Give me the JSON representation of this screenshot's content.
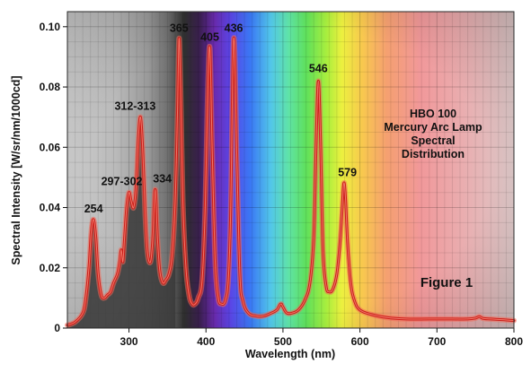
{
  "chart_data": {
    "type": "line",
    "title": "",
    "xlabel": "Wavelength (nm)",
    "ylabel": "Spectral Intensity [W/sr/nm/1000cd]",
    "xlim": [
      220,
      800
    ],
    "ylim": [
      0,
      0.105
    ],
    "x_ticks": [
      300,
      400,
      500,
      600,
      700,
      800
    ],
    "x_tick_labels": [
      "300",
      "400",
      "500",
      "600",
      "700",
      "800"
    ],
    "y_ticks": [
      0,
      0.02,
      0.04,
      0.06,
      0.08,
      0.1
    ],
    "y_tick_labels": [
      "0",
      "0.02",
      "0.04",
      "0.06",
      "0.08",
      "0.10"
    ],
    "grid": true,
    "colors": {
      "line": "#cc1f1a",
      "line_glow": "#f06a5a",
      "uv_fill": "#3a3a3a",
      "plot_bg": "#cfcfcf"
    },
    "annotation_lines": [
      "HBO 100",
      "Mercury Arc Lamp",
      "Spectral",
      "Distribution"
    ],
    "figure_label": "Figure 1",
    "peak_labels": [
      {
        "text": "254",
        "x": 254,
        "y": 0.036
      },
      {
        "text": "297-302",
        "x": 300,
        "y": 0.045
      },
      {
        "text": "312-313",
        "x": 315,
        "y": 0.07
      },
      {
        "text": "334",
        "x": 334,
        "y": 0.046
      },
      {
        "text": "365",
        "x": 365,
        "y": 0.096
      },
      {
        "text": "405",
        "x": 405,
        "y": 0.093
      },
      {
        "text": "436",
        "x": 436,
        "y": 0.096
      },
      {
        "text": "546",
        "x": 546,
        "y": 0.082
      },
      {
        "text": "579",
        "x": 579,
        "y": 0.048
      }
    ],
    "series": [
      {
        "x": [
          220,
          230,
          240,
          244,
          248,
          251,
          254,
          257,
          260,
          264,
          268,
          272,
          276,
          280,
          285,
          288,
          290,
          292,
          294,
          297,
          300,
          303,
          306,
          309,
          312,
          315,
          318,
          321,
          324,
          328,
          331,
          334,
          337,
          340,
          344,
          348,
          352,
          356,
          360,
          363,
          365,
          367,
          370,
          374,
          378,
          382,
          386,
          390,
          395,
          399,
          402,
          405,
          408,
          412,
          416,
          420,
          425,
          429,
          432,
          436,
          440,
          444,
          448,
          455,
          465,
          475,
          485,
          492,
          497,
          500,
          505,
          512,
          520,
          528,
          535,
          540,
          543,
          546,
          549,
          552,
          556,
          560,
          565,
          570,
          574,
          577,
          579,
          581,
          584,
          588,
          593,
          600,
          615,
          635,
          660,
          690,
          720,
          740,
          750,
          755,
          760,
          770,
          785,
          800
        ],
        "y": [
          0.001,
          0.002,
          0.005,
          0.01,
          0.02,
          0.032,
          0.036,
          0.03,
          0.018,
          0.011,
          0.01,
          0.011,
          0.012,
          0.015,
          0.018,
          0.022,
          0.026,
          0.022,
          0.029,
          0.04,
          0.045,
          0.042,
          0.04,
          0.046,
          0.062,
          0.07,
          0.058,
          0.038,
          0.025,
          0.022,
          0.03,
          0.046,
          0.03,
          0.019,
          0.015,
          0.016,
          0.018,
          0.024,
          0.042,
          0.072,
          0.096,
          0.08,
          0.042,
          0.02,
          0.011,
          0.008,
          0.008,
          0.01,
          0.016,
          0.04,
          0.075,
          0.093,
          0.06,
          0.022,
          0.01,
          0.008,
          0.009,
          0.016,
          0.038,
          0.096,
          0.058,
          0.018,
          0.009,
          0.005,
          0.004,
          0.004,
          0.005,
          0.006,
          0.008,
          0.007,
          0.005,
          0.005,
          0.006,
          0.009,
          0.015,
          0.03,
          0.06,
          0.082,
          0.06,
          0.026,
          0.014,
          0.012,
          0.013,
          0.018,
          0.028,
          0.04,
          0.048,
          0.044,
          0.028,
          0.015,
          0.009,
          0.006,
          0.0045,
          0.0035,
          0.003,
          0.003,
          0.003,
          0.003,
          0.0033,
          0.0038,
          0.0032,
          0.003,
          0.0028,
          0.0025
        ]
      }
    ]
  }
}
